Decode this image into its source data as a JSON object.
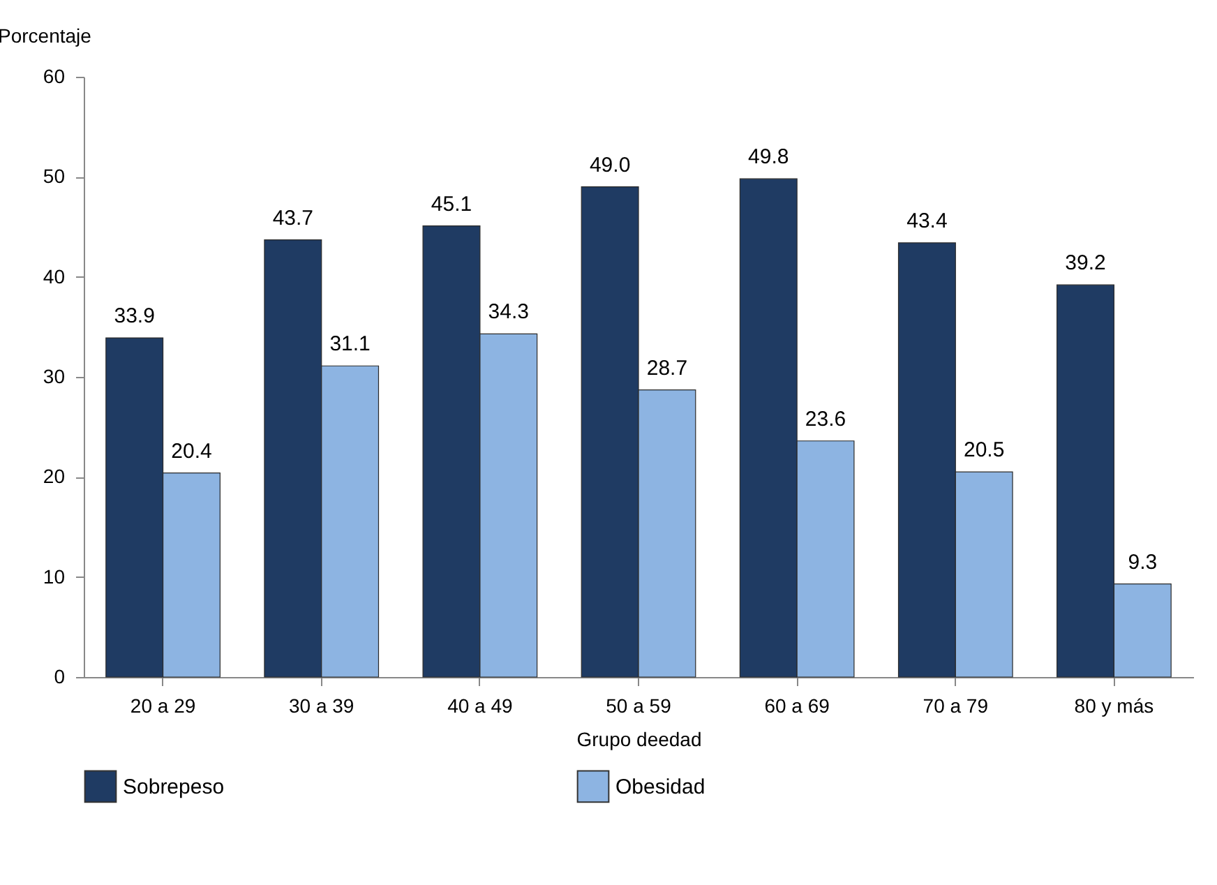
{
  "chart_data": {
    "type": "bar",
    "ylabel": "Porcentaje",
    "xlabel": "Grupo deedad",
    "categories": [
      "20 a 29",
      "30 a 39",
      "40 a 49",
      "50 a 59",
      "60 a 69",
      "70 a 79",
      "80 y más"
    ],
    "series": [
      {
        "name": "Sobrepeso",
        "color": "#1f3b63",
        "values": [
          33.9,
          43.7,
          45.1,
          49.0,
          49.8,
          43.4,
          39.2
        ],
        "value_labels": [
          "33.9",
          "43.7",
          "45.1",
          "49.0",
          "49.8",
          "43.4",
          "39.2"
        ]
      },
      {
        "name": "Obesidad",
        "color": "#8db4e2",
        "values": [
          20.4,
          31.1,
          34.3,
          28.7,
          23.6,
          20.5,
          9.3
        ],
        "value_labels": [
          "20.4",
          "31.1",
          "34.3",
          "28.7",
          "23.6",
          "20.5",
          "9.3"
        ]
      }
    ],
    "ylim": [
      0,
      60
    ],
    "yticks": [
      0,
      10,
      20,
      30,
      40,
      50,
      60
    ],
    "grid": false,
    "legend": "bottom"
  }
}
